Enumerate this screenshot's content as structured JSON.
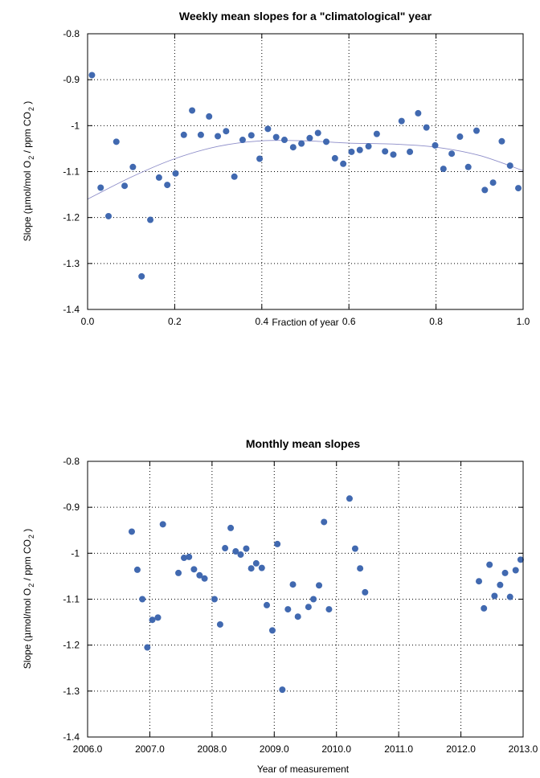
{
  "chart_data": [
    {
      "type": "scatter",
      "title": "Weekly mean slopes for a \"climatological\" year",
      "xlabel": "Fraction of year",
      "ylabel_parts": [
        "Slope (",
        "μ",
        "mol/mol O",
        "2",
        " / ppm CO",
        "2",
        " )"
      ],
      "xlim": [
        0.0,
        1.0
      ],
      "ylim": [
        -1.4,
        -0.8
      ],
      "xticks": [
        "0.0",
        "0.2",
        "0.4",
        "0.6",
        "0.8",
        "1.0"
      ],
      "yticks": [
        "-0.8",
        "-0.9",
        "-1",
        "-1.1",
        "-1.2",
        "-1.3",
        "-1.4"
      ],
      "grid": true,
      "fit_curve": [
        [
          0.0,
          -1.16
        ],
        [
          0.1,
          -1.112
        ],
        [
          0.2,
          -1.072
        ],
        [
          0.3,
          -1.045
        ],
        [
          0.4,
          -1.033
        ],
        [
          0.5,
          -1.033
        ],
        [
          0.6,
          -1.038
        ],
        [
          0.7,
          -1.04
        ],
        [
          0.8,
          -1.047
        ],
        [
          0.9,
          -1.065
        ],
        [
          1.0,
          -1.098
        ]
      ],
      "points": [
        [
          0.01,
          -0.89
        ],
        [
          0.03,
          -1.135
        ],
        [
          0.048,
          -1.197
        ],
        [
          0.066,
          -1.035
        ],
        [
          0.085,
          -1.131
        ],
        [
          0.104,
          -1.09
        ],
        [
          0.124,
          -1.328
        ],
        [
          0.144,
          -1.205
        ],
        [
          0.164,
          -1.113
        ],
        [
          0.183,
          -1.129
        ],
        [
          0.202,
          -1.104
        ],
        [
          0.221,
          -1.02
        ],
        [
          0.24,
          -0.967
        ],
        [
          0.26,
          -1.02
        ],
        [
          0.279,
          -0.98
        ],
        [
          0.299,
          -1.023
        ],
        [
          0.318,
          -1.012
        ],
        [
          0.337,
          -1.111
        ],
        [
          0.356,
          -1.031
        ],
        [
          0.376,
          -1.021
        ],
        [
          0.395,
          -1.072
        ],
        [
          0.414,
          -1.007
        ],
        [
          0.433,
          -1.025
        ],
        [
          0.452,
          -1.031
        ],
        [
          0.472,
          -1.047
        ],
        [
          0.491,
          -1.039
        ],
        [
          0.51,
          -1.027
        ],
        [
          0.529,
          -1.016
        ],
        [
          0.548,
          -1.035
        ],
        [
          0.568,
          -1.071
        ],
        [
          0.587,
          -1.083
        ],
        [
          0.606,
          -1.057
        ],
        [
          0.625,
          -1.053
        ],
        [
          0.645,
          -1.045
        ],
        [
          0.664,
          -1.018
        ],
        [
          0.683,
          -1.056
        ],
        [
          0.702,
          -1.063
        ],
        [
          0.721,
          -0.99
        ],
        [
          0.74,
          -1.057
        ],
        [
          0.759,
          -0.973
        ],
        [
          0.778,
          -1.004
        ],
        [
          0.798,
          -1.043
        ],
        [
          0.817,
          -1.094
        ],
        [
          0.836,
          -1.061
        ],
        [
          0.855,
          -1.024
        ],
        [
          0.874,
          -1.09
        ],
        [
          0.893,
          -1.011
        ],
        [
          0.912,
          -1.14
        ],
        [
          0.931,
          -1.124
        ],
        [
          0.951,
          -1.034
        ],
        [
          0.97,
          -1.087
        ],
        [
          0.989,
          -1.136
        ]
      ]
    },
    {
      "type": "scatter",
      "title": "Monthly mean slopes",
      "xlabel": "Year of measurement",
      "ylabel_parts": [
        "Slope (",
        "μ",
        "mol/mol O",
        "2",
        " / ppm CO",
        "2",
        " )"
      ],
      "xlim": [
        2006.0,
        2013.0
      ],
      "ylim": [
        -1.4,
        -0.8
      ],
      "xticks": [
        "2006.0",
        "2007.0",
        "2008.0",
        "2009.0",
        "2010.0",
        "2011.0",
        "2012.0",
        "2013.0"
      ],
      "yticks": [
        "-0.8",
        "-0.9",
        "-1",
        "-1.1",
        "-1.2",
        "-1.3",
        "-1.4"
      ],
      "grid": true,
      "points": [
        [
          2006.71,
          -0.953
        ],
        [
          2006.8,
          -1.036
        ],
        [
          2006.88,
          -1.1
        ],
        [
          2006.96,
          -1.205
        ],
        [
          2007.04,
          -1.145
        ],
        [
          2007.13,
          -1.14
        ],
        [
          2007.21,
          -0.937
        ],
        [
          2007.46,
          -1.043
        ],
        [
          2007.55,
          -1.01
        ],
        [
          2007.63,
          -1.008
        ],
        [
          2007.71,
          -1.035
        ],
        [
          2007.8,
          -1.048
        ],
        [
          2007.88,
          -1.055
        ],
        [
          2008.04,
          -1.1
        ],
        [
          2008.13,
          -1.155
        ],
        [
          2008.21,
          -0.989
        ],
        [
          2008.3,
          -0.945
        ],
        [
          2008.38,
          -0.996
        ],
        [
          2008.46,
          -1.003
        ],
        [
          2008.55,
          -0.99
        ],
        [
          2008.63,
          -1.033
        ],
        [
          2008.71,
          -1.022
        ],
        [
          2008.8,
          -1.032
        ],
        [
          2008.88,
          -1.113
        ],
        [
          2008.97,
          -1.168
        ],
        [
          2009.05,
          -0.98
        ],
        [
          2009.13,
          -1.297
        ],
        [
          2009.22,
          -1.122
        ],
        [
          2009.3,
          -1.068
        ],
        [
          2009.38,
          -1.138
        ],
        [
          2009.55,
          -1.117
        ],
        [
          2009.63,
          -1.1
        ],
        [
          2009.72,
          -1.07
        ],
        [
          2009.8,
          -0.932
        ],
        [
          2009.88,
          -1.122
        ],
        [
          2010.21,
          -0.881
        ],
        [
          2010.3,
          -0.99
        ],
        [
          2010.38,
          -1.033
        ],
        [
          2010.46,
          -1.085
        ],
        [
          2012.29,
          -1.061
        ],
        [
          2012.37,
          -1.12
        ],
        [
          2012.46,
          -1.025
        ],
        [
          2012.54,
          -1.093
        ],
        [
          2012.63,
          -1.069
        ],
        [
          2012.71,
          -1.043
        ],
        [
          2012.79,
          -1.095
        ],
        [
          2012.88,
          -1.037
        ],
        [
          2012.96,
          -1.014
        ]
      ]
    }
  ]
}
